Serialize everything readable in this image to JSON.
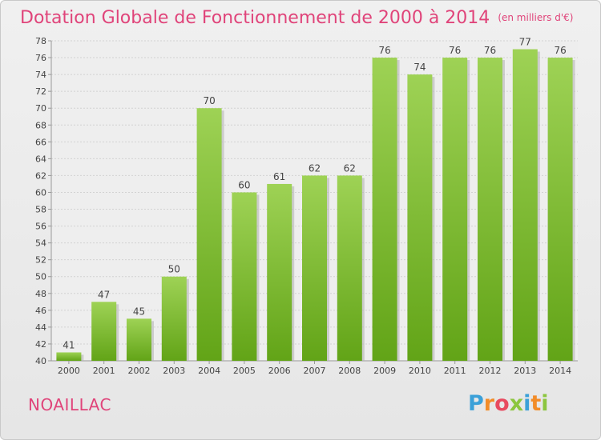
{
  "header": {
    "title": "Dotation Globale de Fonctionnement de 2000 à 2014",
    "subtitle": "(en milliers d'€)"
  },
  "footer": {
    "commune": "NOAILLAC",
    "brand_letters": [
      "P",
      "r",
      "o",
      "x",
      "i",
      "t",
      "i"
    ],
    "brand_colors": [
      "#3ba0d8",
      "#f28c28",
      "#e84a5f",
      "#8cc63f",
      "#3ba0d8",
      "#f28c28",
      "#8cc63f"
    ]
  },
  "colors": {
    "bar_light": "#9ed255",
    "bar_dark": "#62a417",
    "bar_shadow": "#b6b6b6",
    "label": "#444444",
    "grid": "#d2d2d2",
    "accent": "#e0447a"
  },
  "chart_data": {
    "type": "bar",
    "title": "Dotation Globale de Fonctionnement de 2000 à 2014",
    "subtitle": "(en milliers d'€)",
    "categories": [
      "2000",
      "2001",
      "2002",
      "2003",
      "2004",
      "2005",
      "2006",
      "2007",
      "2008",
      "2009",
      "2010",
      "2011",
      "2012",
      "2013",
      "2014"
    ],
    "values": [
      41,
      47,
      45,
      50,
      70,
      60,
      61,
      62,
      62,
      76,
      74,
      76,
      76,
      77,
      76
    ],
    "ylim": [
      40,
      78
    ],
    "ytick_step": 2,
    "grid": true,
    "xlabel": "",
    "ylabel": ""
  }
}
